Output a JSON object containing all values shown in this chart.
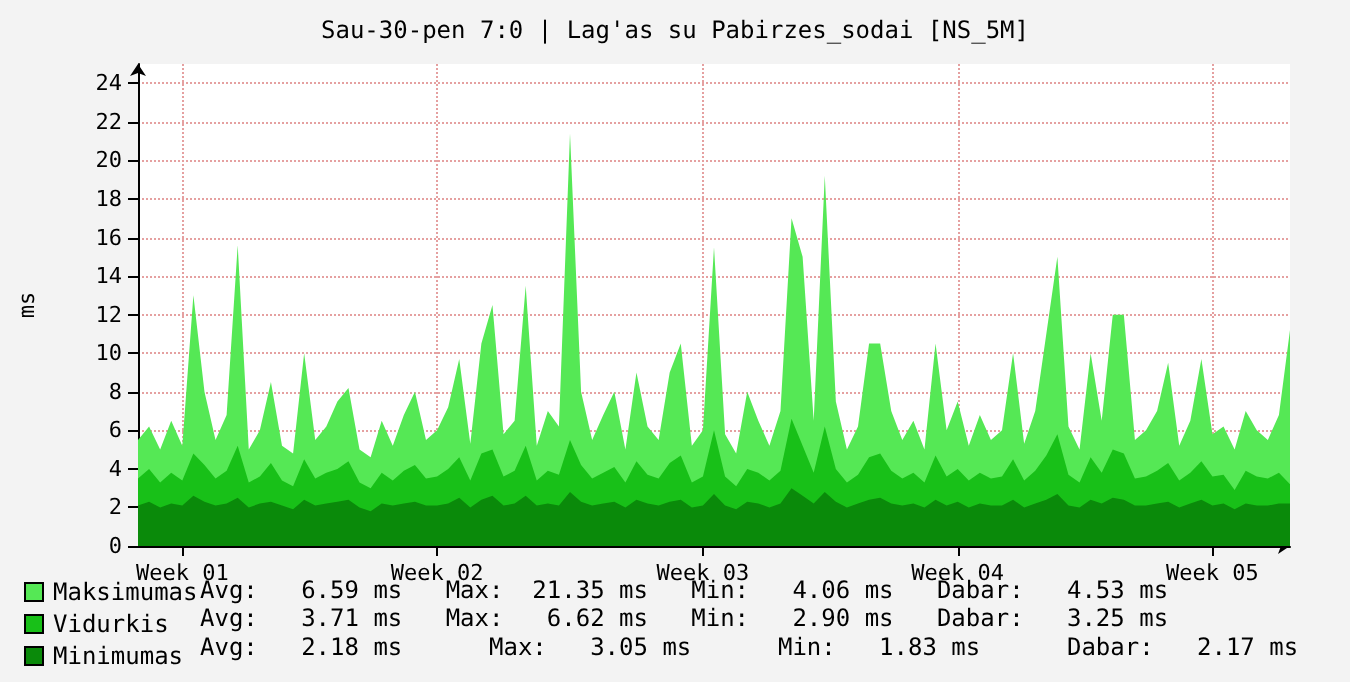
{
  "chart_data": {
    "type": "area",
    "title": "Sau-30-pen 7:0 | Lag'as su Pabirzes_sodai [NS_5M]",
    "ylabel": "ms",
    "categories": [
      null,
      null,
      null,
      null,
      "Week 01",
      null,
      null,
      null,
      null,
      null,
      null,
      null,
      null,
      null,
      null,
      null,
      null,
      null,
      null,
      null,
      null,
      null,
      null,
      null,
      null,
      null,
      null,
      "Week 02",
      null,
      null,
      null,
      null,
      null,
      null,
      null,
      null,
      null,
      null,
      null,
      null,
      null,
      null,
      null,
      null,
      null,
      null,
      null,
      null,
      null,
      null,
      null,
      "Week 03",
      null,
      null,
      null,
      null,
      null,
      null,
      null,
      null,
      null,
      null,
      null,
      null,
      null,
      null,
      null,
      null,
      null,
      null,
      null,
      null,
      null,
      null,
      "Week 04",
      null,
      null,
      null,
      null,
      null,
      null,
      null,
      null,
      null,
      null,
      null,
      null,
      null,
      null,
      null,
      null,
      null,
      null,
      null,
      null,
      null,
      null,
      "Week 05",
      null,
      null,
      null,
      null,
      null,
      null,
      null
    ],
    "series": [
      {
        "name": "Maksimumas",
        "color": "#55e855",
        "values": [
          5.5,
          6.2,
          5.0,
          6.5,
          5.2,
          13,
          8,
          5.5,
          6.8,
          15.6,
          5.0,
          6.0,
          8.5,
          5.2,
          4.8,
          10,
          5.5,
          6.2,
          7.5,
          8.2,
          5.0,
          4.6,
          6.5,
          5.2,
          6.8,
          8,
          5.5,
          6.0,
          7.2,
          9.7,
          5.3,
          10.5,
          12.5,
          5.8,
          6.5,
          13.5,
          5.2,
          7.0,
          6.2,
          21.4,
          8,
          5.5,
          6.8,
          8,
          5.0,
          9,
          6.2,
          5.5,
          9,
          10.5,
          5.2,
          6.0,
          15.5,
          5.8,
          4.8,
          8,
          6.5,
          5.2,
          7.0,
          17,
          15,
          6.5,
          19.2,
          7.5,
          5.0,
          6.2,
          10.5,
          10.5,
          7,
          5.5,
          6.5,
          5.0,
          10.5,
          6.0,
          7.5,
          5.2,
          6.8,
          5.5,
          6.0,
          10,
          5.3,
          7.0,
          11,
          15,
          6.2,
          5.0,
          10,
          6.5,
          12,
          12,
          5.5,
          6.0,
          7.0,
          9.5,
          5.2,
          6.5,
          9.7,
          5.8,
          6.2,
          5.0,
          7.0,
          6.0,
          5.5,
          6.8,
          11.2
        ]
      },
      {
        "name": "Vidurkis",
        "color": "#18c018",
        "values": [
          3.5,
          4.0,
          3.3,
          3.8,
          3.4,
          4.8,
          4.2,
          3.5,
          3.9,
          5.2,
          3.3,
          3.6,
          4.3,
          3.4,
          3.1,
          4.5,
          3.5,
          3.8,
          4.0,
          4.4,
          3.3,
          3.0,
          3.8,
          3.4,
          3.9,
          4.2,
          3.5,
          3.6,
          4.0,
          4.6,
          3.4,
          4.8,
          5.0,
          3.6,
          3.9,
          5.2,
          3.4,
          3.9,
          3.7,
          5.5,
          4.2,
          3.5,
          3.8,
          4.1,
          3.3,
          4.4,
          3.7,
          3.5,
          4.3,
          4.7,
          3.3,
          3.6,
          6.0,
          3.6,
          3.1,
          4.0,
          3.8,
          3.4,
          3.9,
          6.6,
          5.2,
          3.8,
          6.2,
          4.0,
          3.3,
          3.7,
          4.6,
          4.8,
          3.9,
          3.5,
          3.8,
          3.3,
          4.7,
          3.6,
          4.0,
          3.4,
          3.8,
          3.5,
          3.6,
          4.5,
          3.4,
          3.9,
          4.7,
          5.8,
          3.7,
          3.3,
          4.6,
          3.8,
          5.0,
          4.8,
          3.5,
          3.6,
          3.9,
          4.3,
          3.4,
          3.8,
          4.4,
          3.6,
          3.7,
          2.9,
          3.9,
          3.6,
          3.5,
          3.8,
          3.2
        ]
      },
      {
        "name": "Minimumas",
        "color": "#0a8a0a",
        "values": [
          2.1,
          2.3,
          2.0,
          2.2,
          2.1,
          2.6,
          2.3,
          2.1,
          2.2,
          2.5,
          2.0,
          2.2,
          2.3,
          2.1,
          1.9,
          2.4,
          2.1,
          2.2,
          2.3,
          2.4,
          2.0,
          1.8,
          2.2,
          2.1,
          2.2,
          2.3,
          2.1,
          2.1,
          2.2,
          2.5,
          2.0,
          2.4,
          2.6,
          2.1,
          2.2,
          2.6,
          2.1,
          2.2,
          2.1,
          2.8,
          2.3,
          2.1,
          2.2,
          2.3,
          2.0,
          2.4,
          2.2,
          2.1,
          2.3,
          2.4,
          2.0,
          2.1,
          2.7,
          2.1,
          1.9,
          2.3,
          2.2,
          2.0,
          2.2,
          3.0,
          2.6,
          2.2,
          2.8,
          2.3,
          2.0,
          2.2,
          2.4,
          2.5,
          2.2,
          2.1,
          2.2,
          2.0,
          2.4,
          2.1,
          2.3,
          2.0,
          2.2,
          2.1,
          2.1,
          2.4,
          2.0,
          2.2,
          2.4,
          2.7,
          2.1,
          2.0,
          2.4,
          2.2,
          2.5,
          2.4,
          2.1,
          2.1,
          2.2,
          2.3,
          2.0,
          2.2,
          2.4,
          2.1,
          2.2,
          1.9,
          2.2,
          2.1,
          2.1,
          2.2,
          2.2
        ]
      }
    ],
    "ylim": [
      0,
      25
    ],
    "yticks": [
      0,
      2,
      4,
      6,
      8,
      10,
      12,
      14,
      16,
      18,
      20,
      22,
      24
    ],
    "grid": true,
    "legend": "bottom left",
    "annotations": [
      "Avg:   6.59 ms   Max:  21.35 ms   Min:   4.06 ms   Dabar:   4.53 ms",
      "Avg:   3.71 ms   Max:   6.62 ms   Min:   2.90 ms   Dabar:   3.25 ms",
      "Avg:   2.18 ms      Max:   3.05 ms      Min:   1.83 ms      Dabar:   2.17 ms"
    ]
  }
}
